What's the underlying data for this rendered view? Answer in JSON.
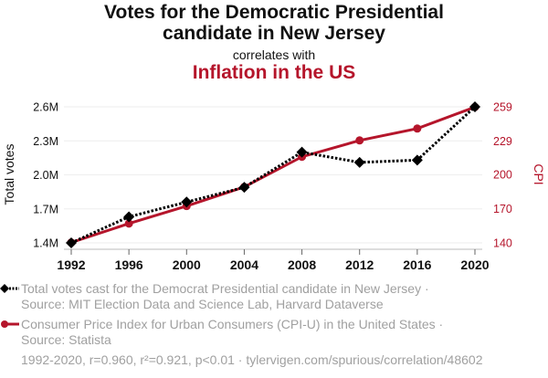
{
  "header": {
    "title_line1": "Votes for the Democratic Presidential",
    "title_line2": "candidate in New Jersey",
    "correlates": "correlates with",
    "subtitle": "Inflation in the US"
  },
  "legend": {
    "series1_line1": "Total votes cast for the Democrat Presidential candidate in New Jersey ·",
    "series1_line2": "Source: MIT Election Data and Science Lab, Harvard Dataverse",
    "series2_line1": "Consumer Price Index for Urban Consumers (CPI-U) in the United States ·",
    "series2_line2": "Source: Statista"
  },
  "footer": "1992-2020, r=0.960, r²=0.921, p<0.01 · tylervigen.com/spurious/correlation/48602",
  "colors": {
    "votes": "#000000",
    "cpi": "#b5152b",
    "grid": "#eeeeee",
    "axis_text": "#111111"
  },
  "chart_data": {
    "type": "line",
    "title": "Votes for the Democratic Presidential candidate in New Jersey correlates with Inflation in the US",
    "x": [
      1992,
      1996,
      2000,
      2004,
      2008,
      2012,
      2016,
      2020
    ],
    "xtick_labels": [
      "1992",
      "1996",
      "2000",
      "2004",
      "2008",
      "2012",
      "2016",
      "2020"
    ],
    "ylabel_left": "Total votes",
    "ylabel_right": "CPI",
    "left_axis": {
      "ylim": [
        1.4,
        2.6
      ],
      "ticks": [
        1.4,
        1.7,
        2.0,
        2.3,
        2.6
      ],
      "tick_labels": [
        "1.4M",
        "1.7M",
        "2.0M",
        "2.3M",
        "2.6M"
      ]
    },
    "right_axis": {
      "ylim": [
        140,
        259
      ],
      "ticks": [
        140,
        170,
        200,
        229,
        259
      ],
      "tick_labels": [
        "140",
        "170",
        "200",
        "229",
        "259"
      ]
    },
    "grid": true,
    "legend_placement": "bottom",
    "series": [
      {
        "name": "Total votes cast for the Democrat Presidential candidate in New Jersey",
        "axis": "left",
        "unit": "millions",
        "style": "dotted",
        "marker": "diamond",
        "values": [
          1.4,
          1.63,
          1.76,
          1.89,
          2.2,
          2.11,
          2.13,
          2.6
        ]
      },
      {
        "name": "Consumer Price Index for Urban Consumers (CPI-U) in the United States",
        "axis": "right",
        "style": "solid",
        "marker": "circle",
        "values": [
          140.3,
          156.9,
          172.2,
          188.9,
          215.3,
          229.6,
          240.0,
          258.8
        ]
      }
    ]
  }
}
